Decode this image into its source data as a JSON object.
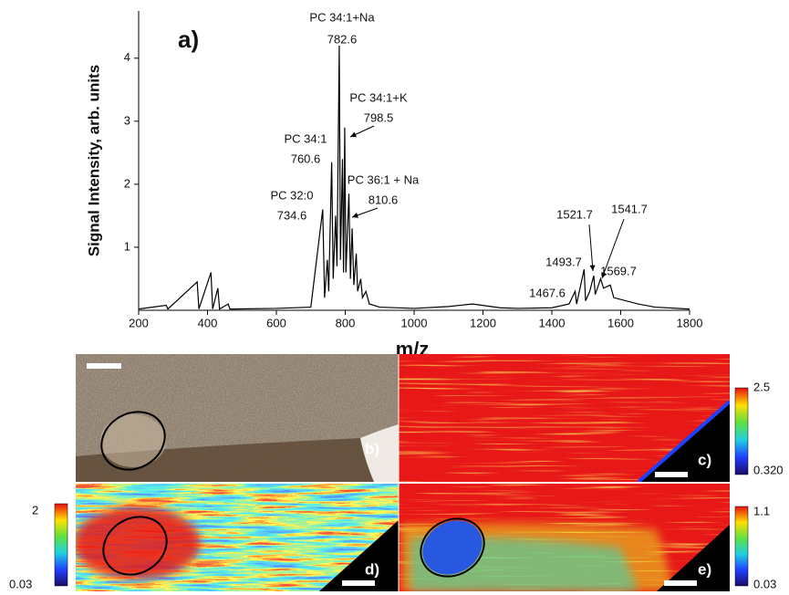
{
  "chart_data": {
    "type": "line",
    "title": "a)",
    "xlabel": "m/z",
    "ylabel": "Signal Intensity, arb. units",
    "x": [
      200,
      280,
      285,
      370,
      375,
      410,
      415,
      430,
      435,
      460,
      465,
      600,
      700,
      734.6,
      740,
      748,
      752,
      760.6,
      765,
      772,
      776,
      782.6,
      786,
      792,
      795,
      798.5,
      802,
      810.6,
      815,
      820,
      825,
      832,
      836,
      845,
      850,
      860,
      870,
      900,
      1000,
      1100,
      1170,
      1250,
      1300,
      1400,
      1450,
      1467.6,
      1472,
      1493.7,
      1498,
      1510,
      1521.7,
      1526,
      1541.7,
      1550,
      1569.7,
      1580,
      1650,
      1700,
      1800
    ],
    "series": [
      {
        "color": "#000000",
        "values": [
          0.02,
          0.08,
          0.02,
          0.45,
          0.02,
          0.6,
          0.02,
          0.35,
          0.02,
          0.1,
          0.02,
          0.03,
          0.05,
          1.6,
          0.2,
          0.8,
          0.3,
          2.35,
          0.5,
          1.5,
          0.7,
          4.2,
          0.8,
          2.4,
          0.6,
          2.9,
          0.6,
          1.85,
          0.5,
          1.3,
          0.4,
          0.9,
          0.3,
          0.5,
          0.2,
          0.3,
          0.1,
          0.05,
          0.03,
          0.06,
          0.1,
          0.04,
          0.03,
          0.04,
          0.1,
          0.3,
          0.1,
          0.65,
          0.15,
          0.3,
          0.55,
          0.25,
          0.5,
          0.35,
          0.4,
          0.2,
          0.1,
          0.05,
          0.02
        ]
      }
    ],
    "xlim": [
      200,
      1800
    ],
    "xticks": [
      200,
      400,
      600,
      800,
      1000,
      1200,
      1400,
      1600,
      1800
    ],
    "ylim": [
      0,
      4.75
    ],
    "yticks": [
      1,
      2,
      3,
      4
    ],
    "annotations": [
      {
        "text": "PC 34:1+Na",
        "mz": "782.6"
      },
      {
        "text": "PC 34:1+K",
        "mz": "798.5"
      },
      {
        "text": "PC 34:1",
        "mz": "760.6"
      },
      {
        "text": "PC 36:1 + Na",
        "mz": "810.6"
      },
      {
        "text": "PC 32:0",
        "mz": "734.6"
      },
      {
        "mz": "1521.7"
      },
      {
        "mz": "1541.7"
      },
      {
        "mz": "1493.7"
      },
      {
        "mz": "1569.7"
      },
      {
        "mz": "1467.6"
      }
    ]
  },
  "panels": [
    {
      "label": "b)"
    },
    {
      "label": "c)",
      "colorbar": {
        "max": "2.5",
        "min": "0.320"
      }
    },
    {
      "label": "d)",
      "colorbar": {
        "max": "2",
        "min": "0.03"
      }
    },
    {
      "label": "e)",
      "colorbar": {
        "max": "1.1",
        "min": "0.03"
      }
    }
  ]
}
